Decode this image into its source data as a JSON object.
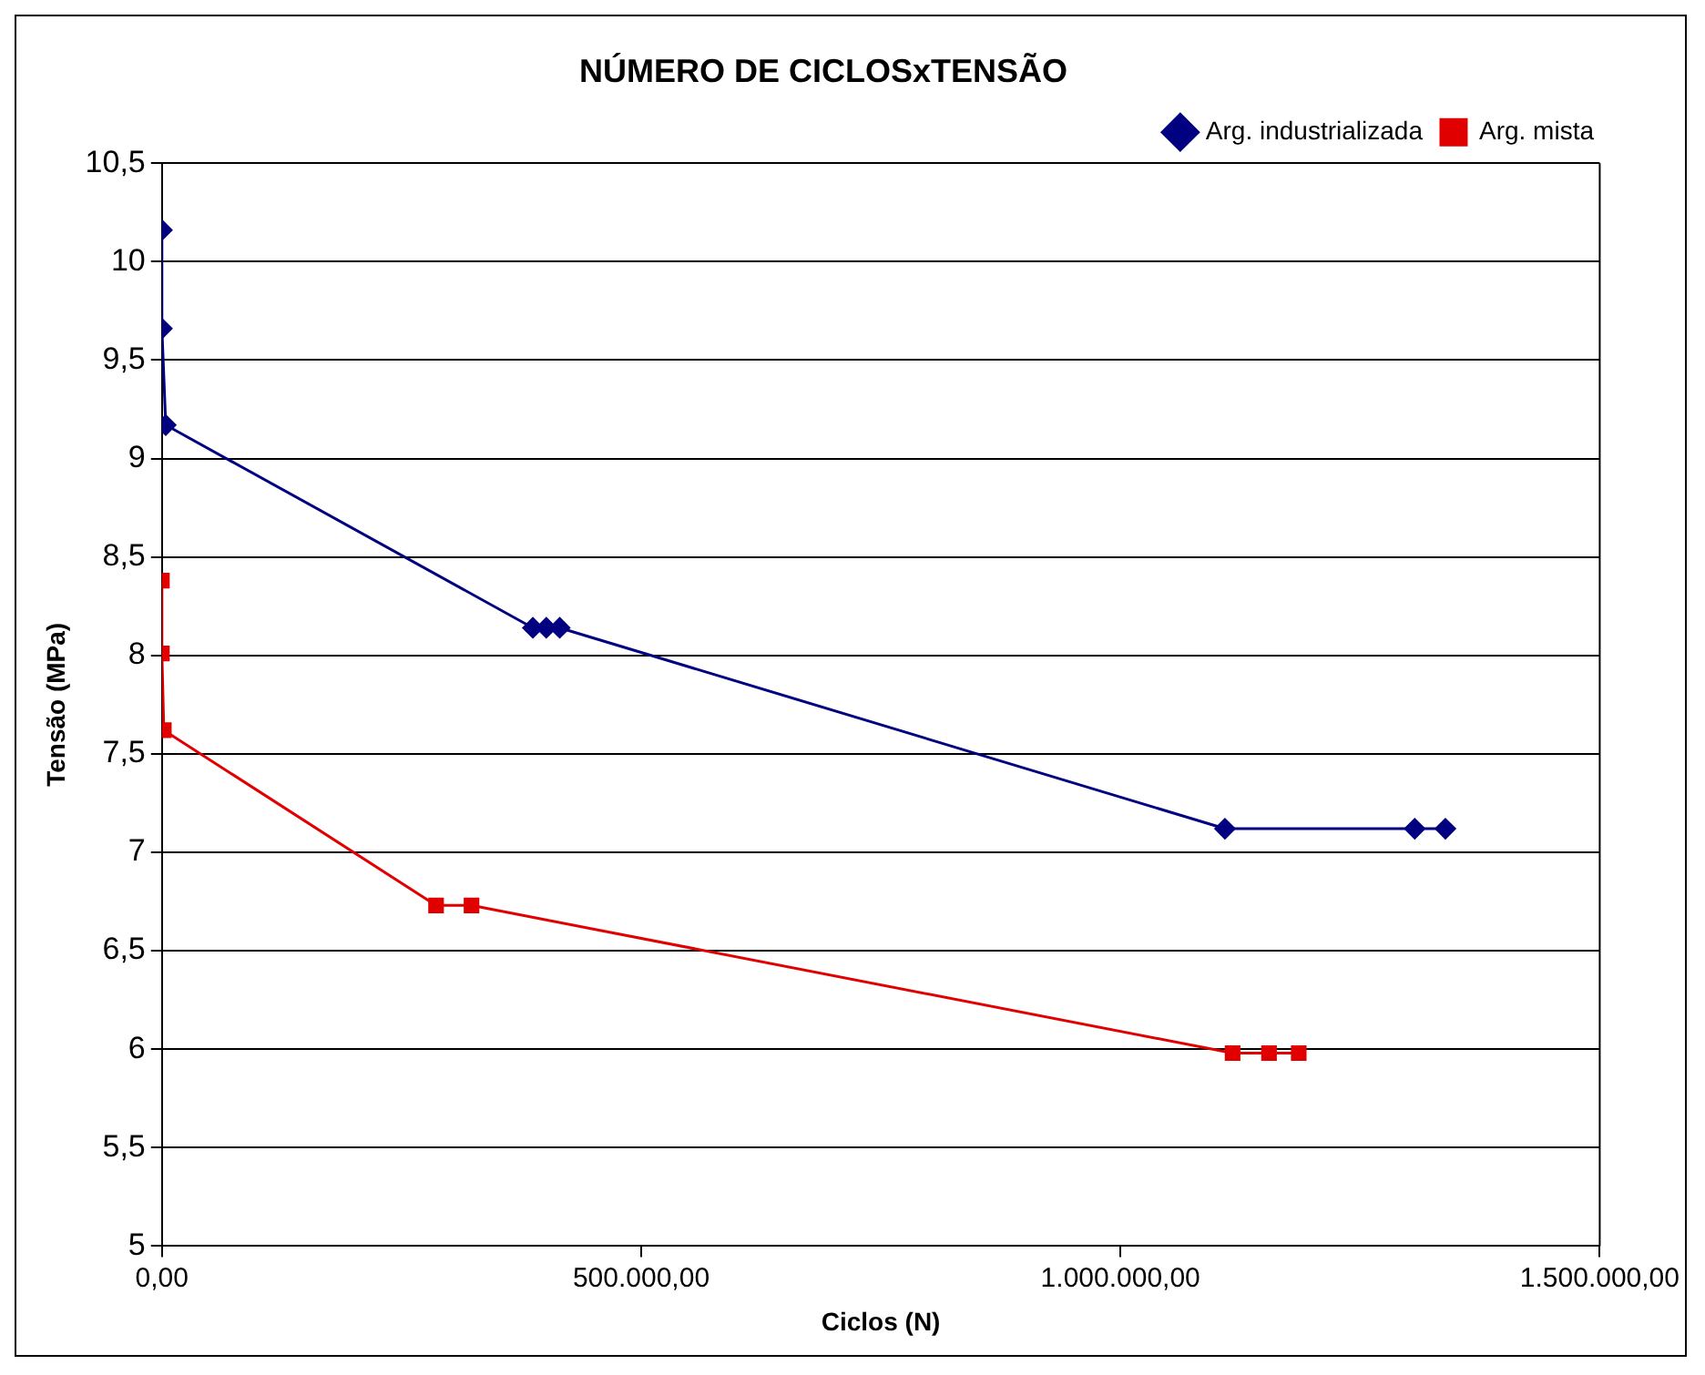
{
  "chart_data": {
    "type": "line",
    "title": "NÚMERO DE CICLOSxTENSÃO",
    "xlabel": "Ciclos (N)",
    "ylabel": "Tensão (MPa)",
    "series": [
      {
        "name": "Arg. industrializada",
        "color": "#000080",
        "marker": "diamond",
        "x": [
          0,
          0,
          4000,
          387000,
          401000,
          415000,
          1109000,
          1307000,
          1339000
        ],
        "values": [
          10.16,
          9.66,
          9.17,
          8.14,
          8.14,
          8.14,
          7.12,
          7.12,
          7.12
        ]
      },
      {
        "name": "Arg. mista",
        "color": "#e00000",
        "marker": "square",
        "x": [
          0,
          0,
          2000,
          286000,
          323000,
          1117000,
          1155000,
          1186000
        ],
        "values": [
          8.38,
          8.01,
          7.62,
          6.73,
          6.73,
          5.98,
          5.98,
          5.98
        ]
      }
    ],
    "xlim": [
      0,
      1500000
    ],
    "xticks": [
      {
        "value": 0,
        "label": "0,00"
      },
      {
        "value": 500000,
        "label": "500.000,00"
      },
      {
        "value": 1000000,
        "label": "1.000.000,00"
      },
      {
        "value": 1500000,
        "label": "1.500.000,00"
      }
    ],
    "ylim": [
      5,
      10.5
    ],
    "yticks": [
      5,
      {
        "value": 5.5,
        "label": "5,5"
      },
      6,
      {
        "value": 6.5,
        "label": "6,5"
      },
      7,
      {
        "value": 7.5,
        "label": "7,5"
      },
      8,
      {
        "value": 8.5,
        "label": "8,5"
      },
      9,
      {
        "value": 9.5,
        "label": "9,5"
      },
      10,
      {
        "value": 10.5,
        "label": "10,5"
      }
    ],
    "grid": "y",
    "legend": "top right"
  }
}
